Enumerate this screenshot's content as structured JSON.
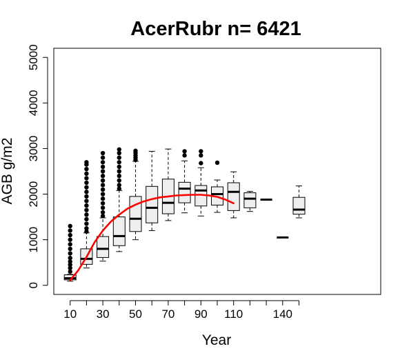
{
  "chart_data": {
    "type": "box",
    "title": "AcerRubr n= 6421",
    "xlabel": "Year",
    "ylabel": "AGB g/m2",
    "xlim": [
      0,
      200
    ],
    "ylim": [
      -200,
      5200
    ],
    "x_ticks": [
      10,
      20,
      30,
      40,
      50,
      60,
      70,
      80,
      90,
      100,
      110,
      120,
      130,
      140,
      150
    ],
    "x_tick_labels": [
      {
        "x": 10,
        "label": "10"
      },
      {
        "x": 30,
        "label": "30"
      },
      {
        "x": 50,
        "label": "50"
      },
      {
        "x": 70,
        "label": "70"
      },
      {
        "x": 90,
        "label": "90"
      },
      {
        "x": 110,
        "label": "110"
      },
      {
        "x": 140,
        "label": "140"
      }
    ],
    "y_ticks": [
      0,
      1000,
      2000,
      3000,
      4000,
      5000
    ],
    "y_tick_labels": [
      "0",
      "1000",
      "2000",
      "3000",
      "4000",
      "5000"
    ],
    "box_fill": "#eeeeee",
    "box_stroke": "#000000",
    "boxes": [
      {
        "x": 10,
        "whisker_low": 90,
        "q1": 120,
        "median": 155,
        "q3": 230,
        "whisker_high": 240,
        "outliers": [
          300,
          380,
          450,
          520,
          600,
          700,
          800,
          900,
          1000,
          1100,
          1200,
          1300
        ]
      },
      {
        "x": 20,
        "whisker_low": 380,
        "q1": 460,
        "median": 580,
        "q3": 800,
        "whisker_high": 1150,
        "outliers": [
          1180,
          1250,
          1350,
          1450,
          1550,
          1650,
          1750,
          1850,
          1950,
          2050,
          2150,
          2250,
          2350,
          2450,
          2550,
          2650,
          2700
        ]
      },
      {
        "x": 30,
        "whisker_low": 530,
        "q1": 610,
        "median": 800,
        "q3": 1070,
        "whisker_high": 1480,
        "outliers": [
          1520,
          1600,
          1700,
          1800,
          1900,
          2000,
          2100,
          2200,
          2300,
          2400,
          2500,
          2600,
          2700,
          2800,
          2900
        ]
      },
      {
        "x": 40,
        "whisker_low": 740,
        "q1": 870,
        "median": 1080,
        "q3": 1500,
        "whisker_high": 2080,
        "outliers": [
          2120,
          2200,
          2300,
          2400,
          2500,
          2600,
          2700,
          2800,
          2900,
          2980
        ]
      },
      {
        "x": 50,
        "whisker_low": 1000,
        "q1": 1180,
        "median": 1460,
        "q3": 1950,
        "whisker_high": 2720,
        "outliers": [
          2750,
          2800,
          2850,
          2900,
          2950
        ]
      },
      {
        "x": 60,
        "whisker_low": 1200,
        "q1": 1370,
        "median": 1700,
        "q3": 2170,
        "whisker_high": 2940,
        "outliers": []
      },
      {
        "x": 70,
        "whisker_low": 1420,
        "q1": 1570,
        "median": 1810,
        "q3": 2330,
        "whisker_high": 2990,
        "outliers": []
      },
      {
        "x": 80,
        "whisker_low": 1590,
        "q1": 1810,
        "median": 2120,
        "q3": 2260,
        "whisker_high": 2730,
        "outliers": [
          2850,
          2940
        ]
      },
      {
        "x": 90,
        "whisker_low": 1520,
        "q1": 1740,
        "median": 2080,
        "q3": 2190,
        "whisker_high": 2580,
        "outliers": [
          2680,
          2850,
          2940
        ]
      },
      {
        "x": 100,
        "whisker_low": 1600,
        "q1": 1760,
        "median": 2000,
        "q3": 2160,
        "whisker_high": 2310,
        "outliers": [
          2690
        ]
      },
      {
        "x": 110,
        "whisker_low": 1480,
        "q1": 1640,
        "median": 2050,
        "q3": 2250,
        "whisker_high": 2490,
        "outliers": []
      },
      {
        "x": 120,
        "whisker_low": 1620,
        "q1": 1700,
        "median": 1900,
        "q3": 2030,
        "whisker_high": 2060,
        "outliers": []
      },
      {
        "x": 130,
        "whisker_low": 1880,
        "q1": 1880,
        "median": 1880,
        "q3": 1880,
        "whisker_high": 1880,
        "outliers": []
      },
      {
        "x": 140,
        "whisker_low": 1050,
        "q1": 1050,
        "median": 1050,
        "q3": 1050,
        "whisker_high": 1050,
        "outliers": []
      },
      {
        "x": 150,
        "whisker_low": 1480,
        "q1": 1560,
        "median": 1660,
        "q3": 1930,
        "whisker_high": 2180,
        "outliers": []
      }
    ],
    "series": [
      {
        "color": "#ff0000",
        "type": "line",
        "x": [
          10,
          15,
          20,
          25,
          30,
          35,
          40,
          45,
          50,
          55,
          60,
          65,
          70,
          75,
          80,
          85,
          90,
          95,
          100,
          105,
          110
        ],
        "y": [
          110,
          330,
          620,
          950,
          1200,
          1400,
          1550,
          1680,
          1770,
          1840,
          1890,
          1930,
          1950,
          1970,
          1980,
          1985,
          1985,
          1970,
          1940,
          1880,
          1800
        ]
      }
    ]
  }
}
